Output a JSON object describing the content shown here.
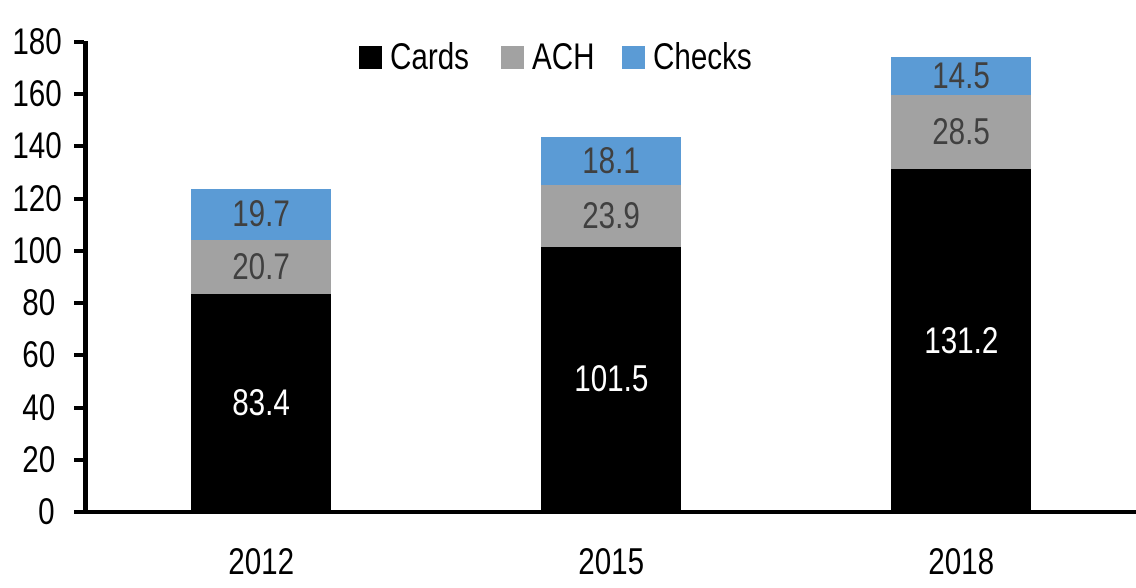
{
  "chart_data": {
    "type": "bar",
    "stacked": true,
    "title": "",
    "categories": [
      "2012",
      "2015",
      "2018"
    ],
    "series": [
      {
        "name": "Cards",
        "color": "#000000",
        "label_color": "#FFFFFF",
        "values": [
          83.4,
          101.5,
          131.2
        ]
      },
      {
        "name": "ACH",
        "color": "#A2A2A2",
        "label_color": "#404040",
        "values": [
          20.7,
          23.9,
          28.5
        ]
      },
      {
        "name": "Checks",
        "color": "#5B9BD5",
        "label_color": "#404040",
        "values": [
          19.7,
          18.1,
          14.5
        ]
      }
    ],
    "legend": {
      "position": "top",
      "labels": [
        "Cards",
        "ACH",
        "Checks"
      ]
    },
    "xlabel": "",
    "ylabel": "",
    "ylim": [
      0,
      180
    ],
    "yticks": [
      0,
      20,
      40,
      60,
      80,
      100,
      120,
      140,
      160,
      180
    ],
    "grid": false,
    "axis_color": "#000000",
    "tick_label_color": "#000000"
  }
}
